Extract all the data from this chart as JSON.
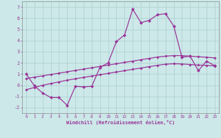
{
  "xlabel": "Windchill (Refroidissement éolien,°C)",
  "bg_color": "#cce8e8",
  "grid_color": "#aacece",
  "line_color": "#993399",
  "xlim": [
    -0.5,
    23.5
  ],
  "ylim": [
    -2.5,
    7.5
  ],
  "xticks": [
    0,
    1,
    2,
    3,
    4,
    5,
    6,
    7,
    8,
    9,
    10,
    11,
    12,
    13,
    14,
    15,
    16,
    17,
    18,
    19,
    20,
    21,
    22,
    23
  ],
  "yticks": [
    -2,
    -1,
    0,
    1,
    2,
    3,
    4,
    5,
    6,
    7
  ],
  "line1_x": [
    0,
    1,
    2,
    3,
    4,
    5,
    6,
    7,
    8,
    9,
    10,
    11,
    12,
    13,
    14,
    15,
    16,
    17,
    18,
    19,
    20,
    21,
    22,
    23
  ],
  "line1_y": [
    1.0,
    -0.05,
    -0.7,
    -1.1,
    -1.1,
    -1.8,
    -0.1,
    -0.15,
    -0.1,
    1.6,
    2.0,
    3.9,
    4.5,
    6.8,
    5.6,
    5.8,
    6.3,
    6.4,
    5.3,
    2.5,
    2.6,
    1.3,
    2.15,
    1.75
  ],
  "line2_x": [
    0,
    1,
    2,
    3,
    4,
    5,
    6,
    7,
    8,
    9,
    10,
    11,
    12,
    13,
    14,
    15,
    16,
    17,
    18,
    19,
    20,
    21,
    22,
    23
  ],
  "line2_y": [
    0.6,
    0.72,
    0.84,
    0.96,
    1.08,
    1.2,
    1.32,
    1.44,
    1.56,
    1.68,
    1.8,
    1.92,
    2.04,
    2.16,
    2.28,
    2.4,
    2.52,
    2.6,
    2.65,
    2.65,
    2.6,
    2.55,
    2.5,
    2.45
  ],
  "line3_x": [
    0,
    1,
    2,
    3,
    4,
    5,
    6,
    7,
    8,
    9,
    10,
    11,
    12,
    13,
    14,
    15,
    16,
    17,
    18,
    19,
    20,
    21,
    22,
    23
  ],
  "line3_y": [
    -0.4,
    -0.2,
    0.0,
    0.15,
    0.3,
    0.45,
    0.58,
    0.7,
    0.82,
    0.94,
    1.06,
    1.18,
    1.3,
    1.42,
    1.54,
    1.66,
    1.78,
    1.88,
    1.92,
    1.9,
    1.85,
    1.8,
    1.78,
    1.72
  ]
}
